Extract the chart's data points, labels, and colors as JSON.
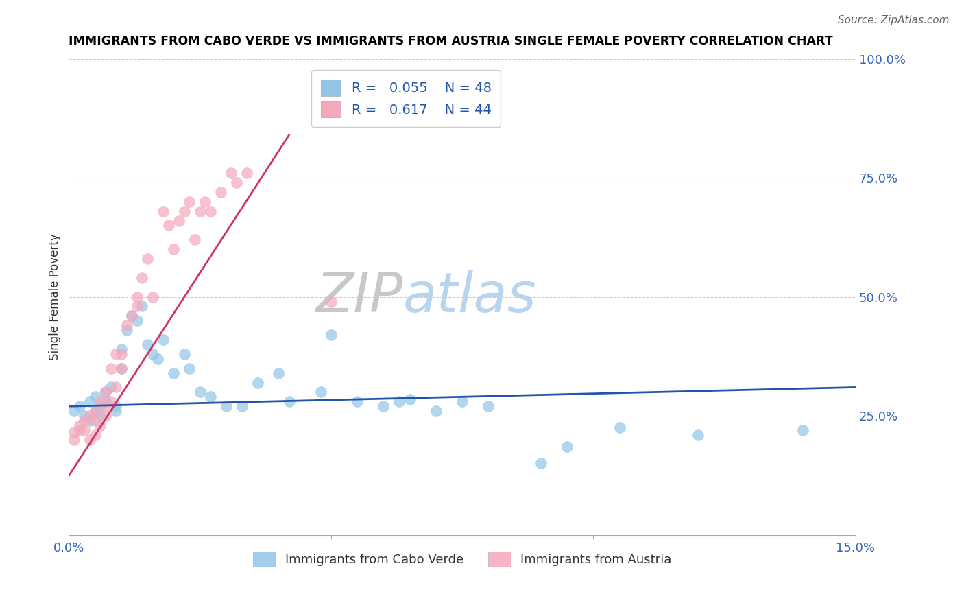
{
  "title": "IMMIGRANTS FROM CABO VERDE VS IMMIGRANTS FROM AUSTRIA SINGLE FEMALE POVERTY CORRELATION CHART",
  "source": "Source: ZipAtlas.com",
  "xlabel_blue": "Immigrants from Cabo Verde",
  "xlabel_pink": "Immigrants from Austria",
  "ylabel": "Single Female Poverty",
  "xlim": [
    0.0,
    0.15
  ],
  "ylim": [
    0.0,
    1.0
  ],
  "legend_blue_R": "0.055",
  "legend_blue_N": "48",
  "legend_pink_R": "0.617",
  "legend_pink_N": "44",
  "blue_color": "#92C5E8",
  "pink_color": "#F4A8BC",
  "trendline_blue_color": "#2255AA",
  "trendline_pink_color": "#CC3366",
  "blue_scatter_x": [
    0.001,
    0.002,
    0.003,
    0.004,
    0.004,
    0.005,
    0.005,
    0.006,
    0.006,
    0.007,
    0.007,
    0.008,
    0.009,
    0.009,
    0.01,
    0.01,
    0.011,
    0.012,
    0.013,
    0.014,
    0.015,
    0.016,
    0.017,
    0.018,
    0.02,
    0.022,
    0.023,
    0.025,
    0.027,
    0.03,
    0.033,
    0.036,
    0.04,
    0.042,
    0.048,
    0.05,
    0.055,
    0.06,
    0.063,
    0.065,
    0.07,
    0.075,
    0.08,
    0.09,
    0.095,
    0.105,
    0.12,
    0.14
  ],
  "blue_scatter_y": [
    0.26,
    0.27,
    0.25,
    0.28,
    0.24,
    0.26,
    0.29,
    0.27,
    0.25,
    0.3,
    0.28,
    0.31,
    0.27,
    0.26,
    0.35,
    0.39,
    0.43,
    0.46,
    0.45,
    0.48,
    0.4,
    0.38,
    0.37,
    0.41,
    0.34,
    0.38,
    0.35,
    0.3,
    0.29,
    0.27,
    0.27,
    0.32,
    0.34,
    0.28,
    0.3,
    0.42,
    0.28,
    0.27,
    0.28,
    0.285,
    0.26,
    0.28,
    0.27,
    0.15,
    0.185,
    0.225,
    0.21,
    0.22
  ],
  "pink_scatter_x": [
    0.001,
    0.001,
    0.002,
    0.002,
    0.003,
    0.003,
    0.004,
    0.004,
    0.005,
    0.005,
    0.005,
    0.006,
    0.006,
    0.007,
    0.007,
    0.007,
    0.008,
    0.008,
    0.009,
    0.009,
    0.01,
    0.01,
    0.011,
    0.012,
    0.013,
    0.013,
    0.014,
    0.015,
    0.016,
    0.018,
    0.019,
    0.02,
    0.021,
    0.022,
    0.023,
    0.024,
    0.025,
    0.026,
    0.027,
    0.029,
    0.031,
    0.032,
    0.034,
    0.05
  ],
  "pink_scatter_y": [
    0.2,
    0.215,
    0.22,
    0.23,
    0.22,
    0.24,
    0.2,
    0.25,
    0.21,
    0.26,
    0.24,
    0.23,
    0.28,
    0.27,
    0.3,
    0.25,
    0.28,
    0.35,
    0.31,
    0.38,
    0.38,
    0.35,
    0.44,
    0.46,
    0.48,
    0.5,
    0.54,
    0.58,
    0.5,
    0.68,
    0.65,
    0.6,
    0.66,
    0.68,
    0.7,
    0.62,
    0.68,
    0.7,
    0.68,
    0.72,
    0.76,
    0.74,
    0.76,
    0.49
  ],
  "blue_trendline_x": [
    0.0,
    0.15
  ],
  "blue_trendline_y": [
    0.27,
    0.31
  ],
  "pink_trendline_x": [
    -0.002,
    0.042
  ],
  "pink_trendline_y": [
    0.09,
    0.84
  ]
}
